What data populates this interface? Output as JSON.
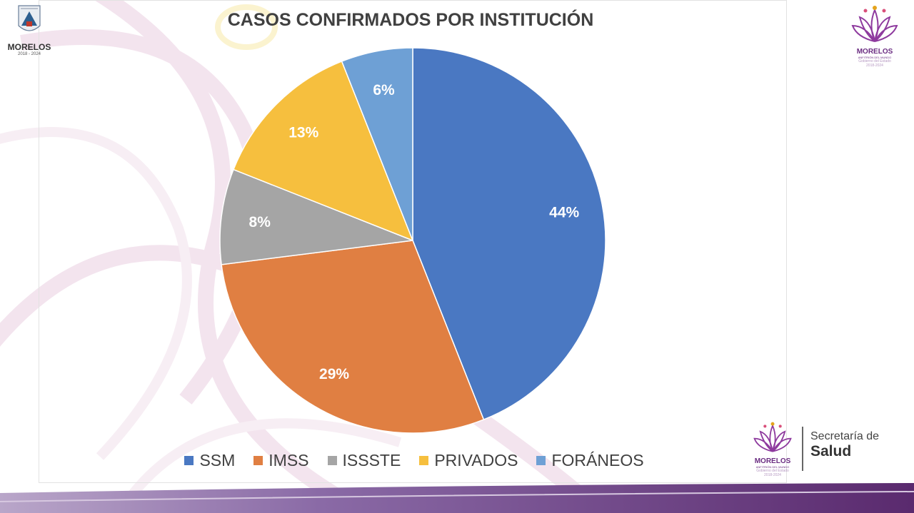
{
  "chart_data": {
    "type": "pie",
    "title": "CASOS CONFIRMADOS POR INSTITUCIÓN",
    "categories": [
      "SSM",
      "IMSS",
      "ISSSTE",
      "PRIVADOS",
      "FORÁNEOS"
    ],
    "values": [
      44,
      29,
      8,
      13,
      6
    ],
    "labels": [
      "44%",
      "29%",
      "8%",
      "13%",
      "6%"
    ],
    "colors": [
      "#4a78c2",
      "#e07f42",
      "#a5a5a5",
      "#f6bf3e",
      "#6ea0d5"
    ],
    "legend_position": "bottom"
  },
  "header": {
    "left_logo_name": "MORELOS",
    "left_logo_years": "2018 - 2024"
  },
  "footer": {
    "secretaria_line1": "Secretaría de",
    "secretaria_line2": "Salud"
  }
}
